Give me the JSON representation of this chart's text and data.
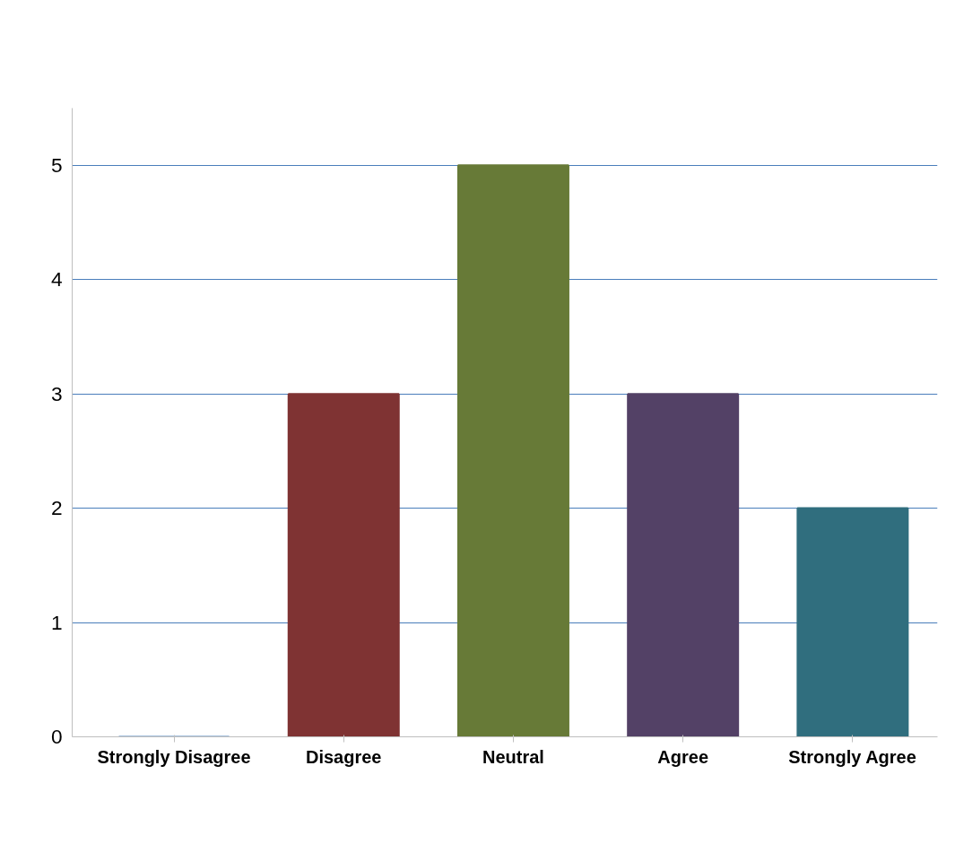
{
  "chart_data": {
    "type": "bar",
    "categories": [
      "Strongly Disagree",
      "Disagree",
      "Neutral",
      "Agree",
      "Strongly Agree"
    ],
    "values": [
      0,
      3,
      5,
      3,
      2
    ],
    "colors": [
      "#4f81bd",
      "#7f3333",
      "#677a37",
      "#534166",
      "#306e7e"
    ],
    "ylim": [
      0,
      5.5
    ],
    "yticks": [
      0,
      1,
      2,
      3,
      4,
      5
    ],
    "grid": "y"
  }
}
